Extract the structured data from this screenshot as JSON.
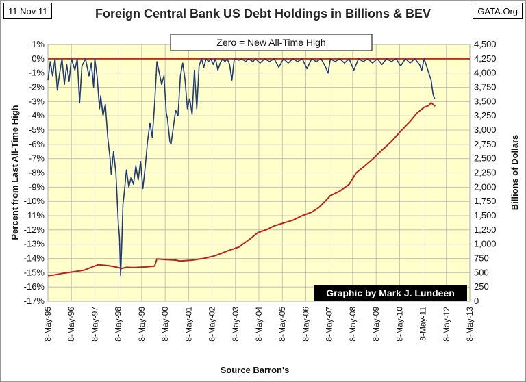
{
  "header": {
    "date": "11 Nov 11",
    "source_site": "GATA.Org"
  },
  "chart_data": {
    "type": "line",
    "title": "Foreign Central Bank US Debt Holdings in Billions & BEV",
    "xlabel": "Source Barron's",
    "ylabel_left": "Percent from Last All-Time High",
    "ylabel_right": "Billions of Dollars",
    "annotation": "Zero = New All-Time High",
    "credit": "Graphic by Mark J. Lundeen",
    "x_ticks": [
      "8-May-95",
      "8-May-96",
      "8-May-97",
      "8-May-98",
      "8-May-99",
      "8-May-00",
      "8-May-01",
      "8-May-02",
      "8-May-03",
      "8-May-04",
      "8-May-05",
      "8-May-06",
      "8-May-07",
      "8-May-08",
      "8-May-09",
      "8-May-10",
      "8-May-11",
      "8-May-12",
      "8-May-13"
    ],
    "left_axis": {
      "min": -17,
      "max": 1,
      "ticks": [
        "1%",
        "0%",
        "-1%",
        "-2%",
        "-3%",
        "-4%",
        "-5%",
        "-6%",
        "-7%",
        "-8%",
        "-9%",
        "-10%",
        "-11%",
        "-12%",
        "-13%",
        "-14%",
        "-15%",
        "-16%",
        "-17%"
      ]
    },
    "right_axis": {
      "min": 0,
      "max": 4500,
      "ticks": [
        "4,500",
        "4,250",
        "4,000",
        "3,750",
        "3,500",
        "3,250",
        "3,000",
        "2,750",
        "2,500",
        "2,250",
        "2,000",
        "1,750",
        "1,500",
        "1,250",
        "1,000",
        "750",
        "500",
        "250",
        "0"
      ]
    },
    "plot_background": "#ffffcc",
    "reference_line": {
      "value": 0,
      "color": "#e0201c"
    },
    "series": [
      {
        "axis": "left",
        "color": "#1f3a78",
        "points": [
          [
            1995.35,
            -1.5
          ],
          [
            1995.45,
            -0.2
          ],
          [
            1995.55,
            -1.2
          ],
          [
            1995.65,
            0
          ],
          [
            1995.75,
            -2.2
          ],
          [
            1995.85,
            -1.0
          ],
          [
            1995.95,
            0
          ],
          [
            1996.05,
            -1.8
          ],
          [
            1996.15,
            -0.4
          ],
          [
            1996.25,
            -1.6
          ],
          [
            1996.35,
            0
          ],
          [
            1996.5,
            -0.8
          ],
          [
            1996.6,
            0
          ],
          [
            1996.7,
            -3.1
          ],
          [
            1996.8,
            -0.5
          ],
          [
            1996.95,
            0
          ],
          [
            1997.1,
            -1.2
          ],
          [
            1997.2,
            -0.3
          ],
          [
            1997.3,
            -2.0
          ],
          [
            1997.35,
            0
          ],
          [
            1997.45,
            -1.3
          ],
          [
            1997.55,
            -3.5
          ],
          [
            1997.6,
            -2.6
          ],
          [
            1997.7,
            -4.0
          ],
          [
            1997.8,
            -3.2
          ],
          [
            1997.9,
            -5.5
          ],
          [
            1998.0,
            -7.0
          ],
          [
            1998.05,
            -8.1
          ],
          [
            1998.15,
            -6.5
          ],
          [
            1998.25,
            -8.0
          ],
          [
            1998.3,
            -9.8
          ],
          [
            1998.35,
            -11.5
          ],
          [
            1998.4,
            -12.5
          ],
          [
            1998.45,
            -15.2
          ],
          [
            1998.5,
            -13.0
          ],
          [
            1998.55,
            -10.2
          ],
          [
            1998.6,
            -9.5
          ],
          [
            1998.7,
            -7.8
          ],
          [
            1998.8,
            -9.0
          ],
          [
            1998.9,
            -8.3
          ],
          [
            1999.0,
            -8.8
          ],
          [
            1999.1,
            -7.5
          ],
          [
            1999.2,
            -8.5
          ],
          [
            1999.3,
            -7.2
          ],
          [
            1999.4,
            -9.1
          ],
          [
            1999.5,
            -7.6
          ],
          [
            1999.6,
            -5.8
          ],
          [
            1999.7,
            -4.5
          ],
          [
            1999.8,
            -5.5
          ],
          [
            1999.9,
            -3.2
          ],
          [
            2000.0,
            -0.2
          ],
          [
            2000.1,
            -1.0
          ],
          [
            2000.2,
            -1.8
          ],
          [
            2000.3,
            -1.2
          ],
          [
            2000.4,
            -3.8
          ],
          [
            2000.45,
            -4.2
          ],
          [
            2000.55,
            -5.8
          ],
          [
            2000.6,
            -6.0
          ],
          [
            2000.7,
            -4.8
          ],
          [
            2000.8,
            -3.6
          ],
          [
            2000.9,
            -4.0
          ],
          [
            2001.0,
            -1.2
          ],
          [
            2001.1,
            -0.3
          ],
          [
            2001.2,
            -1.5
          ],
          [
            2001.3,
            -3.5
          ],
          [
            2001.4,
            -2.8
          ],
          [
            2001.5,
            -3.9
          ],
          [
            2001.6,
            -0.8
          ],
          [
            2001.7,
            -3.5
          ],
          [
            2001.8,
            -0.5
          ],
          [
            2001.9,
            0
          ],
          [
            2002.0,
            -0.6
          ],
          [
            2002.1,
            0
          ],
          [
            2002.2,
            -0.2
          ],
          [
            2002.3,
            0
          ],
          [
            2002.4,
            -0.4
          ],
          [
            2002.5,
            0
          ],
          [
            2002.6,
            -0.8
          ],
          [
            2002.7,
            -0.3
          ],
          [
            2002.8,
            0
          ],
          [
            2002.9,
            -0.2
          ],
          [
            2003.0,
            0
          ],
          [
            2003.1,
            -0.4
          ],
          [
            2003.2,
            -1.5
          ],
          [
            2003.3,
            0
          ],
          [
            2003.5,
            -0.1
          ],
          [
            2003.6,
            0
          ],
          [
            2003.8,
            -0.2
          ],
          [
            2003.9,
            0
          ],
          [
            2004.1,
            -0.2
          ],
          [
            2004.2,
            0
          ],
          [
            2004.4,
            -0.3
          ],
          [
            2004.6,
            0
          ],
          [
            2004.8,
            -0.2
          ],
          [
            2005.0,
            0
          ],
          [
            2005.2,
            -0.6
          ],
          [
            2005.4,
            0
          ],
          [
            2005.6,
            -0.3
          ],
          [
            2005.8,
            0
          ],
          [
            2006.0,
            -0.2
          ],
          [
            2006.2,
            0
          ],
          [
            2006.4,
            -0.7
          ],
          [
            2006.6,
            0
          ],
          [
            2006.8,
            -0.2
          ],
          [
            2007.0,
            0
          ],
          [
            2007.2,
            -0.6
          ],
          [
            2007.3,
            -1.0
          ],
          [
            2007.4,
            0
          ],
          [
            2007.6,
            -0.2
          ],
          [
            2007.8,
            0
          ],
          [
            2008.0,
            -0.3
          ],
          [
            2008.2,
            0
          ],
          [
            2008.4,
            -0.8
          ],
          [
            2008.6,
            0
          ],
          [
            2008.8,
            -0.2
          ],
          [
            2009.0,
            0
          ],
          [
            2009.2,
            -0.3
          ],
          [
            2009.4,
            0
          ],
          [
            2009.6,
            -0.4
          ],
          [
            2009.8,
            0
          ],
          [
            2010.0,
            -0.2
          ],
          [
            2010.2,
            0
          ],
          [
            2010.4,
            -0.5
          ],
          [
            2010.6,
            0
          ],
          [
            2010.8,
            -0.3
          ],
          [
            2011.0,
            0
          ],
          [
            2011.2,
            -0.4
          ],
          [
            2011.3,
            -0.8
          ],
          [
            2011.4,
            0
          ],
          [
            2011.5,
            -0.5
          ],
          [
            2011.6,
            -1.0
          ],
          [
            2011.7,
            -1.5
          ],
          [
            2011.78,
            -2.5
          ],
          [
            2011.85,
            -2.8
          ]
        ]
      },
      {
        "axis": "right",
        "color": "#c0201c",
        "points": [
          [
            1995.35,
            450
          ],
          [
            1995.6,
            460
          ],
          [
            1996.0,
            490
          ],
          [
            1996.5,
            520
          ],
          [
            1996.9,
            545
          ],
          [
            1997.2,
            595
          ],
          [
            1997.5,
            640
          ],
          [
            1997.9,
            625
          ],
          [
            1998.3,
            595
          ],
          [
            1998.5,
            575
          ],
          [
            1998.7,
            595
          ],
          [
            1999.0,
            590
          ],
          [
            1999.5,
            600
          ],
          [
            1999.9,
            615
          ],
          [
            2000.0,
            740
          ],
          [
            2000.4,
            730
          ],
          [
            2000.8,
            720
          ],
          [
            2001.0,
            705
          ],
          [
            2001.5,
            720
          ],
          [
            2002.0,
            750
          ],
          [
            2002.5,
            800
          ],
          [
            2003.0,
            880
          ],
          [
            2003.5,
            950
          ],
          [
            2004.0,
            1100
          ],
          [
            2004.3,
            1200
          ],
          [
            2004.7,
            1260
          ],
          [
            2005.0,
            1320
          ],
          [
            2005.4,
            1370
          ],
          [
            2005.8,
            1420
          ],
          [
            2006.2,
            1500
          ],
          [
            2006.6,
            1560
          ],
          [
            2006.9,
            1640
          ],
          [
            2007.1,
            1720
          ],
          [
            2007.4,
            1850
          ],
          [
            2007.8,
            1930
          ],
          [
            2008.2,
            2050
          ],
          [
            2008.5,
            2250
          ],
          [
            2008.8,
            2350
          ],
          [
            2009.2,
            2490
          ],
          [
            2009.6,
            2650
          ],
          [
            2010.0,
            2800
          ],
          [
            2010.4,
            2980
          ],
          [
            2010.8,
            3150
          ],
          [
            2011.1,
            3300
          ],
          [
            2011.4,
            3400
          ],
          [
            2011.6,
            3430
          ],
          [
            2011.7,
            3480
          ],
          [
            2011.8,
            3440
          ],
          [
            2011.87,
            3420
          ]
        ]
      }
    ]
  }
}
